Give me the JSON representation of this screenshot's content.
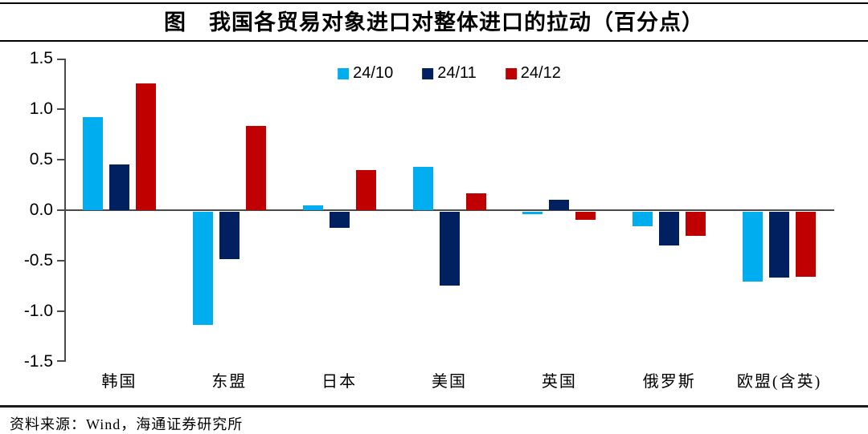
{
  "title": "图　我国各贸易对象进口对整体进口的拉动（百分点）",
  "footer": {
    "source_label": "资料来源：Wind，海通证券研究所"
  },
  "colors": {
    "axis": "#4a4a4a",
    "rule": "#000000",
    "background": "#ffffff"
  },
  "chart_data": {
    "type": "bar",
    "title": "图　我国各贸易对象进口对整体进口的拉动（百分点）",
    "unit": "百分点",
    "categories": [
      "韩国",
      "东盟",
      "日本",
      "美国",
      "英国",
      "俄罗斯",
      "欧盟(含英)"
    ],
    "series": [
      {
        "name": "24/10",
        "color": "#00AEEF",
        "values": [
          0.92,
          -1.12,
          0.05,
          0.43,
          -0.02,
          -0.14,
          -0.69
        ]
      },
      {
        "name": "24/11",
        "color": "#002060",
        "values": [
          0.45,
          -0.47,
          -0.16,
          -0.73,
          0.1,
          -0.33,
          -0.65
        ]
      },
      {
        "name": "24/12",
        "color": "#C00000",
        "values": [
          1.25,
          0.83,
          0.4,
          0.17,
          -0.08,
          -0.24,
          -0.64
        ]
      }
    ],
    "ylim": [
      -1.5,
      1.5
    ],
    "ytick_step": 0.5,
    "ytick_labels": [
      "1.5",
      "1.0",
      "0.5",
      "0.0",
      "-0.5",
      "-1.0",
      "-1.5"
    ],
    "legend_position": "top-center",
    "grid": false
  }
}
